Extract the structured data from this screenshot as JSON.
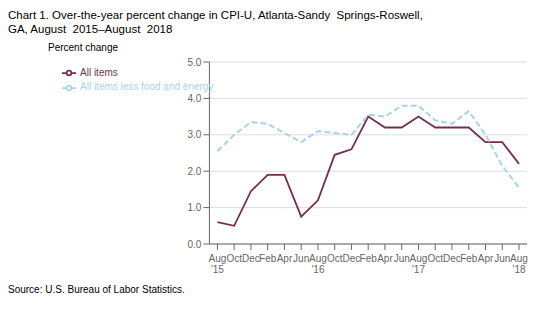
{
  "chart_data": {
    "type": "line",
    "title": "Chart 1. Over-the-year percent change in CPI-U, Atlanta-Sandy  Springs-Roswell,",
    "subtitle": "GA, August  2015–August  2018",
    "y_label": "Percent change",
    "source": "Source: U.S. Bureau of Labor Statistics.",
    "categories": [
      "Aug\n'15",
      "Oct",
      "Dec",
      "Feb",
      "Apr",
      "Jun",
      "Aug\n'16",
      "Oct",
      "Dec",
      "Feb",
      "Apr",
      "Jun",
      "Aug\n'17",
      "Oct",
      "Dec",
      "Feb",
      "Apr",
      "Jun",
      "Aug\n'18"
    ],
    "series": [
      {
        "name": "All items",
        "color": "#722F4F",
        "line_style": "solid",
        "values": [
          0.6,
          0.5,
          1.45,
          1.9,
          1.9,
          0.75,
          1.2,
          2.45,
          2.6,
          3.5,
          3.2,
          3.2,
          3.5,
          3.2,
          3.2,
          3.2,
          2.8,
          2.8,
          2.2
        ]
      },
      {
        "name": "All items less food and energy",
        "color": "#A8D4E8",
        "line_style": "dashed",
        "values": [
          2.55,
          3.0,
          3.35,
          3.3,
          3.05,
          2.8,
          3.1,
          3.05,
          3.0,
          3.55,
          3.5,
          3.8,
          3.8,
          3.4,
          3.3,
          3.65,
          3.0,
          2.15,
          1.55
        ]
      }
    ],
    "ylim": [
      0.0,
      5.0
    ],
    "yticks": [
      {
        "value": 0.0,
        "label": "0.0"
      },
      {
        "value": 1.0,
        "label": "1.0"
      },
      {
        "value": 2.0,
        "label": "2.0"
      },
      {
        "value": 3.0,
        "label": "3.0"
      },
      {
        "value": 4.0,
        "label": "4.0"
      },
      {
        "value": 5.0,
        "label": "5.0"
      }
    ],
    "grid": true,
    "legend": "upper left"
  }
}
